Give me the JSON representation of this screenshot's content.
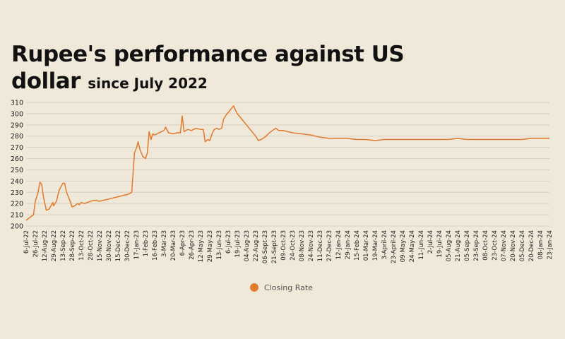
{
  "title_main": "Rupee's performance against US dollar",
  "title_sub": "since July 2022",
  "chart_data": {
    "type": "line",
    "title": "Rupee's performance against US dollar since July 2022",
    "xlabel": "",
    "ylabel": "",
    "ylim": [
      200,
      310
    ],
    "yticks": [
      200,
      210,
      220,
      230,
      240,
      250,
      260,
      270,
      280,
      290,
      300,
      310
    ],
    "grid": "horizontal",
    "legend": "bottom-center",
    "colors": {
      "line": "#e07a2e",
      "grid": "#d8d0c0",
      "background": "#f0e8d8"
    },
    "x_tick_labels": [
      "6-Jul-22",
      "26-Jul-22",
      "12-Aug-22",
      "29-Aug-22",
      "13-Sep-22",
      "28-Sep-22",
      "13-Oct-22",
      "28-Oct-22",
      "15-Nov-22",
      "30-Nov-22",
      "15-Dec-22",
      "30-Dec-22",
      "17-Jan-23",
      "1-Feb-23",
      "16-Feb-23",
      "3-Mar-23",
      "20-Mar-23",
      "6-Apr-23",
      "26-Apr-23",
      "12-May-23",
      "29-May-23",
      "13-Jun-23",
      "6-Jul-23",
      "19-Jul-23",
      "04-Aug-23",
      "22-Aug-23",
      "06-Sept-23",
      "21-Sept-23",
      "09-Oct-23",
      "24-Oct-23",
      "08-Nov-23",
      "24-Nov-23",
      "11-Dec-23",
      "27-Dec-23",
      "12-Jan-24",
      "29-Jan-24",
      "15-Feb-24",
      "01-Mar-24",
      "19-Mar-24",
      "3-April-24",
      "23-April-24",
      "09-May-24",
      "24-May-24",
      "11-Jun-24",
      "2-Jul-24",
      "19-Jul-24",
      "05-Aug-24",
      "21-Aug-24",
      "05-Sep-24",
      "23-Sep-24",
      "08-Oct-24",
      "23-Oct-24",
      "07-Nov-24",
      "20-Nov-24",
      "05-Dec-24",
      "20-Dec-24",
      "08-Jan-24",
      "23-Jan-24"
    ],
    "series": [
      {
        "name": "Closing Rate",
        "points": [
          [
            0,
            205
          ],
          [
            0.3,
            207
          ],
          [
            0.8,
            210
          ],
          [
            1,
            222
          ],
          [
            1.3,
            230
          ],
          [
            1.5,
            239
          ],
          [
            1.7,
            237
          ],
          [
            1.9,
            225
          ],
          [
            2.2,
            214
          ],
          [
            2.5,
            215
          ],
          [
            2.9,
            221
          ],
          [
            3,
            218
          ],
          [
            3.3,
            222
          ],
          [
            3.6,
            232
          ],
          [
            4,
            238
          ],
          [
            4.2,
            238
          ],
          [
            4.4,
            230
          ],
          [
            4.8,
            222
          ],
          [
            5,
            217
          ],
          [
            5.3,
            218
          ],
          [
            5.6,
            220
          ],
          [
            5.8,
            219
          ],
          [
            6,
            221
          ],
          [
            6.3,
            220
          ],
          [
            6.7,
            221
          ],
          [
            7,
            222
          ],
          [
            7.5,
            223
          ],
          [
            8,
            222
          ],
          [
            8.5,
            223
          ],
          [
            9,
            224
          ],
          [
            9.5,
            225
          ],
          [
            10,
            226
          ],
          [
            10.5,
            227
          ],
          [
            11,
            228
          ],
          [
            11.3,
            229
          ],
          [
            11.5,
            230
          ],
          [
            11.8,
            265
          ],
          [
            12,
            269
          ],
          [
            12.2,
            275
          ],
          [
            12.4,
            268
          ],
          [
            12.7,
            262
          ],
          [
            13,
            260
          ],
          [
            13.2,
            265
          ],
          [
            13.4,
            284
          ],
          [
            13.6,
            277
          ],
          [
            13.8,
            282
          ],
          [
            14,
            281
          ],
          [
            14.5,
            283
          ],
          [
            15,
            285
          ],
          [
            15.2,
            288
          ],
          [
            15.5,
            283
          ],
          [
            16,
            282
          ],
          [
            16.5,
            283
          ],
          [
            16.8,
            283
          ],
          [
            17,
            298
          ],
          [
            17.2,
            284
          ],
          [
            17.6,
            286
          ],
          [
            18,
            285
          ],
          [
            18.5,
            287
          ],
          [
            19,
            286
          ],
          [
            19.3,
            286
          ],
          [
            19.5,
            275
          ],
          [
            19.8,
            277
          ],
          [
            20,
            276
          ],
          [
            20.3,
            283
          ],
          [
            20.5,
            286
          ],
          [
            20.8,
            287
          ],
          [
            21,
            286
          ],
          [
            21.3,
            287
          ],
          [
            21.5,
            295
          ],
          [
            21.8,
            299
          ],
          [
            22,
            301
          ],
          [
            22.3,
            304
          ],
          [
            22.6,
            307
          ],
          [
            22.8,
            303
          ],
          [
            23,
            300
          ],
          [
            23.5,
            295
          ],
          [
            24,
            290
          ],
          [
            24.5,
            285
          ],
          [
            25,
            280
          ],
          [
            25.3,
            276
          ],
          [
            25.6,
            277
          ],
          [
            26,
            279
          ],
          [
            26.5,
            283
          ],
          [
            27,
            286
          ],
          [
            27.2,
            287
          ],
          [
            27.5,
            285
          ],
          [
            28,
            285
          ],
          [
            28.5,
            284
          ],
          [
            29,
            283
          ],
          [
            30,
            282
          ],
          [
            31,
            281
          ],
          [
            32,
            279
          ],
          [
            33,
            278
          ],
          [
            34,
            278
          ],
          [
            35,
            278
          ],
          [
            36,
            277
          ],
          [
            37,
            277
          ],
          [
            38,
            276
          ],
          [
            39,
            277
          ],
          [
            40,
            277
          ],
          [
            41,
            277
          ],
          [
            42,
            277
          ],
          [
            43,
            277
          ],
          [
            44,
            277
          ],
          [
            45,
            277
          ],
          [
            46,
            277
          ],
          [
            47,
            278
          ],
          [
            48,
            277
          ],
          [
            49,
            277
          ],
          [
            50,
            277
          ],
          [
            51,
            277
          ],
          [
            52,
            277
          ],
          [
            53,
            277
          ],
          [
            54,
            277
          ],
          [
            55,
            278
          ],
          [
            56,
            278
          ],
          [
            57,
            278
          ]
        ]
      }
    ]
  }
}
